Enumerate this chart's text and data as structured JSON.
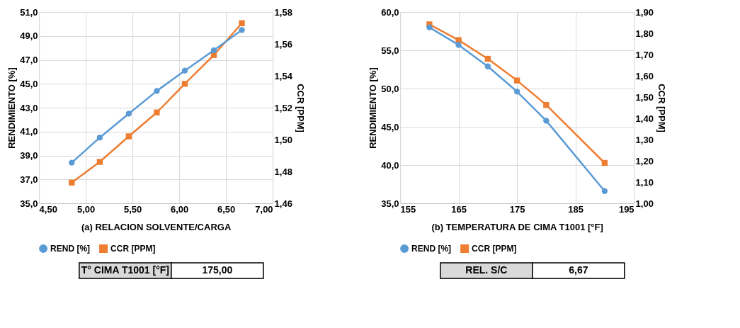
{
  "chart_data": [
    {
      "type": "line",
      "xlabel": "(a) RELACION SOLVENTE/CARGA",
      "ylabel": "RENDIMIENTO [%]",
      "y2label": "CCR [PPM]",
      "x": [
        4.85,
        5.15,
        5.46,
        5.76,
        6.06,
        6.37,
        6.67
      ],
      "series": [
        {
          "name": "REND [%]",
          "color": "#5b9bd5",
          "marker": "circle",
          "values": [
            38.4,
            40.5,
            42.5,
            44.4,
            46.1,
            47.8,
            49.5
          ]
        },
        {
          "name": "CCR [PPM]",
          "color": "#ed7d31",
          "marker": "square",
          "axis": "y2",
          "values": [
            1.473,
            1.486,
            1.502,
            1.517,
            1.535,
            1.553,
            1.573
          ]
        }
      ],
      "xlim": [
        4.5,
        7.0
      ],
      "xticks": [
        {
          "value": 4.5,
          "label": "4,50"
        },
        {
          "value": 5.0,
          "label": "5,00"
        },
        {
          "value": 5.5,
          "label": "5,50"
        },
        {
          "value": 6.0,
          "label": "6,00"
        },
        {
          "value": 6.5,
          "label": "6,50"
        },
        {
          "value": 7.0,
          "label": "7,00"
        }
      ],
      "ylim": [
        35,
        51
      ],
      "yticks": [
        {
          "value": 35,
          "label": "35,0"
        },
        {
          "value": 37,
          "label": "37,0"
        },
        {
          "value": 39,
          "label": "39,0"
        },
        {
          "value": 41,
          "label": "41,0"
        },
        {
          "value": 43,
          "label": "43,0"
        },
        {
          "value": 45,
          "label": "45,0"
        },
        {
          "value": 47,
          "label": "47,0"
        },
        {
          "value": 49,
          "label": "49,0"
        },
        {
          "value": 51,
          "label": "51,0"
        }
      ],
      "y2lim": [
        1.46,
        1.58
      ],
      "y2ticks": [
        {
          "value": 1.46,
          "label": "1,46"
        },
        {
          "value": 1.48,
          "label": "1,48"
        },
        {
          "value": 1.5,
          "label": "1,50"
        },
        {
          "value": 1.52,
          "label": "1,52"
        },
        {
          "value": 1.54,
          "label": "1,54"
        },
        {
          "value": 1.56,
          "label": "1,56"
        },
        {
          "value": 1.58,
          "label": "1,58"
        }
      ],
      "grid": true,
      "legend": "bottom",
      "line_style": "solid",
      "annotations": [
        "T° CIMA T1001 [°F]",
        "175,00"
      ]
    },
    {
      "type": "line",
      "xlabel": "(b) TEMPERATURA DE CIMA T1001 [°F]",
      "ylabel": "RENDIMIENTO [%]",
      "y2label": "CCR [PPM]",
      "x": [
        160,
        165,
        170,
        175,
        180,
        190
      ],
      "series": [
        {
          "name": "REND [%]",
          "color": "#5b9bd5",
          "marker": "circle",
          "values": [
            58.0,
            55.7,
            52.9,
            49.6,
            45.8,
            36.6
          ]
        },
        {
          "name": "CCR [PPM]",
          "color": "#ed7d31",
          "marker": "square",
          "axis": "y2",
          "values": [
            1.842,
            1.768,
            1.68,
            1.578,
            1.463,
            1.19
          ]
        }
      ],
      "xlim": [
        155,
        195
      ],
      "xticks": [
        155,
        165,
        175,
        185,
        195
      ],
      "ylim": [
        35,
        60
      ],
      "yticks": [
        {
          "value": 35,
          "label": "35,0"
        },
        {
          "value": 40,
          "label": "40,0"
        },
        {
          "value": 45,
          "label": "45,0"
        },
        {
          "value": 50,
          "label": "50,0"
        },
        {
          "value": 55,
          "label": "55,0"
        },
        {
          "value": 60,
          "label": "60,0"
        }
      ],
      "y2lim": [
        1.0,
        1.9
      ],
      "y2ticks": [
        {
          "value": 1.0,
          "label": "1,00"
        },
        {
          "value": 1.1,
          "label": "1,10"
        },
        {
          "value": 1.2,
          "label": "1,20"
        },
        {
          "value": 1.3,
          "label": "1,30"
        },
        {
          "value": 1.4,
          "label": "1,40"
        },
        {
          "value": 1.5,
          "label": "1,50"
        },
        {
          "value": 1.6,
          "label": "1,60"
        },
        {
          "value": 1.7,
          "label": "1,70"
        },
        {
          "value": 1.8,
          "label": "1,80"
        },
        {
          "value": 1.9,
          "label": "1,90"
        }
      ],
      "grid": true,
      "legend": "bottom",
      "line_style": "solid",
      "annotations": [
        "REL. S/C",
        "6,67"
      ]
    }
  ]
}
